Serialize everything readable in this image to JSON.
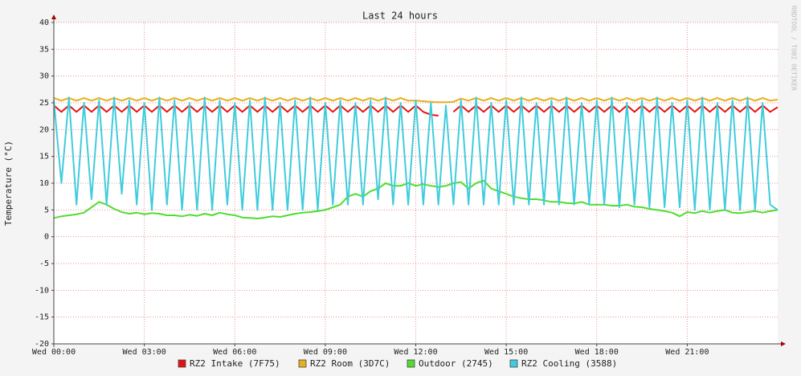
{
  "chart_data": {
    "type": "line",
    "title": "Last 24 hours",
    "y_label": "Temperature (°C)",
    "watermark": "RRDTOOL / TOBI OETIKER",
    "xlim": [
      0,
      24
    ],
    "xticks": [
      {
        "value": 0,
        "label": "Wed 00:00"
      },
      {
        "value": 3,
        "label": "Wed 03:00"
      },
      {
        "value": 6,
        "label": "Wed 06:00"
      },
      {
        "value": 9,
        "label": "Wed 09:00"
      },
      {
        "value": 12,
        "label": "Wed 12:00"
      },
      {
        "value": 15,
        "label": "Wed 15:00"
      },
      {
        "value": 18,
        "label": "Wed 18:00"
      },
      {
        "value": 21,
        "label": "Wed 21:00"
      }
    ],
    "ylim": [
      -20,
      40
    ],
    "yticks": [
      -20,
      -15,
      -10,
      -5,
      0,
      5,
      10,
      15,
      20,
      25,
      30,
      35,
      40
    ],
    "grid": true,
    "x": [
      0,
      0.25,
      0.5,
      0.75,
      1,
      1.25,
      1.5,
      1.75,
      2,
      2.25,
      2.5,
      2.75,
      3,
      3.25,
      3.5,
      3.75,
      4,
      4.25,
      4.5,
      4.75,
      5,
      5.25,
      5.5,
      5.75,
      6,
      6.25,
      6.5,
      6.75,
      7,
      7.25,
      7.5,
      7.75,
      8,
      8.25,
      8.5,
      8.75,
      9,
      9.25,
      9.5,
      9.75,
      10,
      10.25,
      10.5,
      10.75,
      11,
      11.25,
      11.5,
      11.75,
      12,
      12.25,
      12.5,
      12.75,
      13,
      13.25,
      13.5,
      13.75,
      14,
      14.25,
      14.5,
      14.75,
      15,
      15.25,
      15.5,
      15.75,
      16,
      16.25,
      16.5,
      16.75,
      17,
      17.25,
      17.5,
      17.75,
      18,
      18.25,
      18.5,
      18.75,
      19,
      19.25,
      19.5,
      19.75,
      20,
      20.25,
      20.5,
      20.75,
      21,
      21.25,
      21.5,
      21.75,
      22,
      22.25,
      22.5,
      22.75,
      23,
      23.25,
      23.5,
      23.75,
      24
    ],
    "series": [
      {
        "name": "RZ2 Intake (7F75)",
        "color": "#e81010",
        "values": [
          24.5,
          23.3,
          24.5,
          23.3,
          24.5,
          23.3,
          24.5,
          23.3,
          24.5,
          23.3,
          24.5,
          23.3,
          24.5,
          23.3,
          24.5,
          23.3,
          24.5,
          23.3,
          24.5,
          23.3,
          24.5,
          23.3,
          24.5,
          23.3,
          24.5,
          23.3,
          24.5,
          23.3,
          24.5,
          23.3,
          24.5,
          23.3,
          24.5,
          23.3,
          24.5,
          23.3,
          24.5,
          23.3,
          24.5,
          23.3,
          24.5,
          23.3,
          24.5,
          23.3,
          24.5,
          23.3,
          24.5,
          23.3,
          24.5,
          23.3,
          22.8,
          22.6,
          null,
          23.3,
          24.5,
          23.3,
          24.5,
          23.3,
          24.5,
          23.3,
          24.5,
          23.3,
          24.5,
          23.3,
          24.5,
          23.3,
          24.5,
          23.3,
          24.5,
          23.3,
          24.5,
          23.3,
          24.5,
          23.3,
          24.5,
          23.3,
          24.5,
          23.3,
          24.5,
          23.3,
          24.5,
          23.3,
          24.5,
          23.3,
          24.5,
          23.3,
          24.5,
          23.3,
          24.5,
          23.3,
          24.5,
          23.3,
          24.5,
          23.3,
          24.5,
          23.3,
          24.2
        ]
      },
      {
        "name": "RZ2 Room (3D7C)",
        "color": "#e8b020",
        "values": [
          25.9,
          25.4,
          25.9,
          25.4,
          25.9,
          25.4,
          25.9,
          25.4,
          25.9,
          25.4,
          25.9,
          25.4,
          25.9,
          25.4,
          25.9,
          25.4,
          25.9,
          25.4,
          25.9,
          25.4,
          25.9,
          25.4,
          25.9,
          25.4,
          25.9,
          25.4,
          25.9,
          25.4,
          25.9,
          25.4,
          25.9,
          25.4,
          25.9,
          25.4,
          25.9,
          25.4,
          25.9,
          25.4,
          25.9,
          25.4,
          25.9,
          25.4,
          25.9,
          25.4,
          25.9,
          25.4,
          25.9,
          25.4,
          25.4,
          25.3,
          25.2,
          25.1,
          25.1,
          25.2,
          25.8,
          25.4,
          25.9,
          25.4,
          25.9,
          25.4,
          25.9,
          25.4,
          25.9,
          25.4,
          25.9,
          25.4,
          25.9,
          25.4,
          25.9,
          25.4,
          25.9,
          25.4,
          25.9,
          25.4,
          25.9,
          25.4,
          25.9,
          25.4,
          25.9,
          25.4,
          25.9,
          25.4,
          25.9,
          25.4,
          25.9,
          25.4,
          25.9,
          25.4,
          25.9,
          25.4,
          25.9,
          25.4,
          25.9,
          25.4,
          25.9,
          25.4,
          25.6
        ]
      },
      {
        "name": "Outdoor (2745)",
        "color": "#50dd30",
        "values": [
          3.5,
          3.8,
          4.0,
          4.2,
          4.5,
          5.5,
          6.5,
          6.0,
          5.2,
          4.6,
          4.3,
          4.5,
          4.2,
          4.4,
          4.3,
          4.0,
          4.0,
          3.8,
          4.1,
          3.9,
          4.3,
          4.0,
          4.5,
          4.2,
          4.0,
          3.6,
          3.5,
          3.4,
          3.6,
          3.8,
          3.7,
          4.0,
          4.3,
          4.5,
          4.6,
          4.8,
          5.0,
          5.5,
          6.0,
          7.5,
          8.0,
          7.5,
          8.5,
          9.0,
          10.0,
          9.5,
          9.5,
          10.0,
          9.5,
          9.8,
          9.5,
          9.3,
          9.5,
          10.0,
          10.2,
          9.0,
          10.0,
          10.5,
          9.0,
          8.5,
          8.0,
          7.5,
          7.2,
          7.0,
          7.0,
          6.8,
          6.5,
          6.5,
          6.3,
          6.2,
          6.5,
          6.0,
          6.0,
          6.0,
          5.8,
          5.8,
          6.0,
          5.6,
          5.5,
          5.2,
          5.0,
          4.8,
          4.5,
          3.8,
          4.6,
          4.4,
          4.8,
          4.5,
          4.8,
          5.0,
          4.5,
          4.4,
          4.6,
          4.8,
          4.5,
          4.8,
          5.0
        ]
      },
      {
        "name": "RZ2 Cooling (3588)",
        "color": "#40ccdd",
        "values": [
          25.5,
          10,
          26,
          6,
          25,
          7,
          25.5,
          6,
          26,
          8,
          25.5,
          6,
          25,
          5,
          26,
          6,
          25.5,
          5,
          25,
          5,
          26,
          5,
          25.5,
          6,
          25,
          5,
          25.5,
          5,
          26,
          5,
          25,
          5,
          25.5,
          5,
          26,
          5,
          25,
          6,
          25.5,
          6,
          25,
          6,
          25.5,
          7,
          26,
          6,
          25,
          6,
          25.5,
          6,
          25,
          6,
          24.5,
          6,
          25.5,
          6,
          26,
          6,
          25,
          6,
          25.5,
          6,
          26,
          6,
          25,
          6,
          25.5,
          6,
          26,
          6,
          25,
          6,
          25.5,
          6,
          26,
          5.5,
          25,
          6,
          25.5,
          5.5,
          26,
          5.5,
          25,
          5.5,
          25.5,
          5,
          26,
          5,
          25,
          5,
          25.5,
          5,
          26,
          5,
          25,
          6,
          5
        ]
      }
    ]
  }
}
